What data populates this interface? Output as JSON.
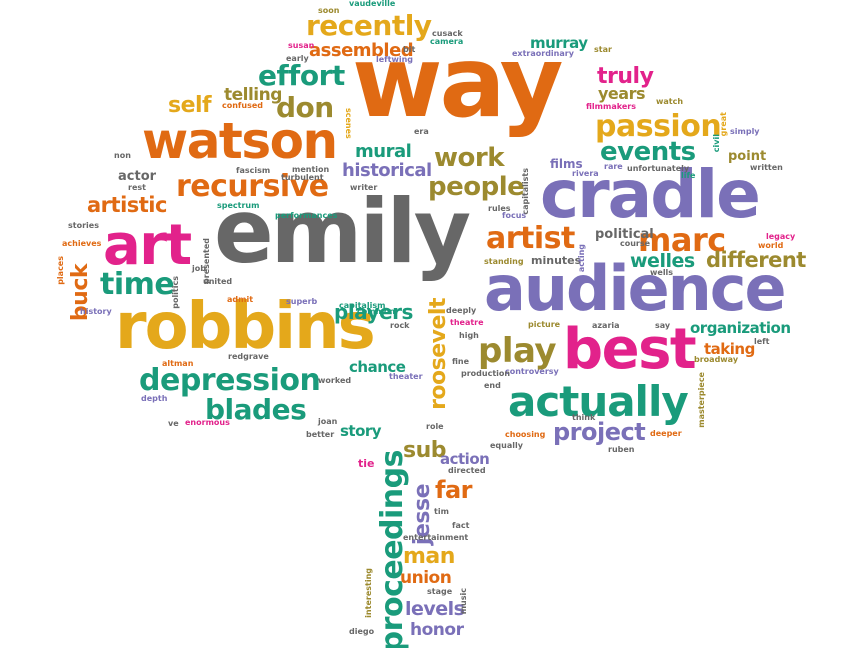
{
  "colors": {
    "orange": "#e06a13",
    "gold": "#e4a81b",
    "gray": "#676767",
    "purple": "#7a70b8",
    "magenta": "#e2228b",
    "teal": "#1a9b7b",
    "olive": "#9c8a2f"
  },
  "words": {
    "way": "way",
    "emily": "emily",
    "cradle": "cradle",
    "audience": "audience",
    "robbins": "robbins",
    "watson": "watson",
    "art": "art",
    "best": "best",
    "actually": "actually",
    "passion": "passion",
    "recursive": "recursive",
    "depression": "depression",
    "artist": "artist",
    "marc": "marc",
    "effort": "effort",
    "recently": "recently",
    "blades": "blades",
    "time": "time",
    "play": "play",
    "work": "work",
    "people": "people",
    "events": "events",
    "project": "project",
    "proceedings": "proceedings",
    "roosevelt": "roosevelt",
    "different": "different",
    "welles": "welles",
    "players": "players",
    "mural": "mural",
    "historical": "historical",
    "don": "don",
    "self": "self",
    "truly": "truly",
    "years": "years",
    "telling": "telling",
    "assembled": "assembled",
    "murray": "murray",
    "artistic": "artistic",
    "buck": "buck",
    "jesse": "jesse",
    "sub": "sub",
    "far": "far",
    "man": "man",
    "union": "union",
    "levels": "levels",
    "honor": "honor",
    "action": "action",
    "story": "story",
    "chance": "chance",
    "organization": "organization",
    "taking": "taking",
    "political": "political",
    "films": "films",
    "point": "point",
    "actor": "actor",
    "minutes": "minutes",
    "vaudeville": "vaudeville",
    "soon": "soon",
    "cusack": "cusack",
    "camera": "camera",
    "susan": "susan",
    "leftwing": "leftwing",
    "bit": "bit",
    "early": "early",
    "star": "star",
    "extraordinary": "extraordinary",
    "filmmakers": "filmmakers",
    "watch": "watch",
    "confused": "confused",
    "era": "era",
    "scenes": "scenes",
    "civil": "civil",
    "great": "great",
    "simply": "simply",
    "unfortunately": "unfortunately",
    "life": "life",
    "rare": "rare",
    "rivera": "rivera",
    "written": "written",
    "non": "non",
    "rest": "rest",
    "fascism": "fascism",
    "mention": "mention",
    "turbulent": "turbulent",
    "writer": "writer",
    "spectrum": "spectrum",
    "performances": "performances",
    "stories": "stories",
    "capitalists": "capitalists",
    "focus": "focus",
    "rules": "rules",
    "course": "course",
    "acting": "acting",
    "legacy": "legacy",
    "world": "world",
    "places": "places",
    "achieves": "achieves",
    "presented": "presented",
    "standing": "standing",
    "wells": "wells",
    "job": "job",
    "united": "united",
    "admit": "admit",
    "capitalism": "capitalism",
    "common": "common",
    "rock": "rock",
    "deeply": "deeply",
    "theatre": "theatre",
    "history": "history",
    "politics": "politics",
    "superb": "superb",
    "high": "high",
    "fine": "fine",
    "picture": "picture",
    "azaria": "azaria",
    "say": "say",
    "left": "left",
    "broadway": "broadway",
    "altman": "altman",
    "redgrave": "redgrave",
    "theater": "theater",
    "controversy": "controversy",
    "worked": "worked",
    "production": "production",
    "end": "end",
    "masterpiece": "masterpiece",
    "depth": "depth",
    "think": "think",
    "ve": "ve",
    "enormous": "enormous",
    "joan": "joan",
    "better": "better",
    "role": "role",
    "choosing": "choosing",
    "deeper": "deeper",
    "ruben": "ruben",
    "equally": "equally",
    "tie": "tie",
    "directed": "directed",
    "tim": "tim",
    "fact": "fact",
    "entertainment": "entertainment",
    "stage": "stage",
    "interesting": "interesting",
    "music": "music",
    "diego": "diego"
  }
}
